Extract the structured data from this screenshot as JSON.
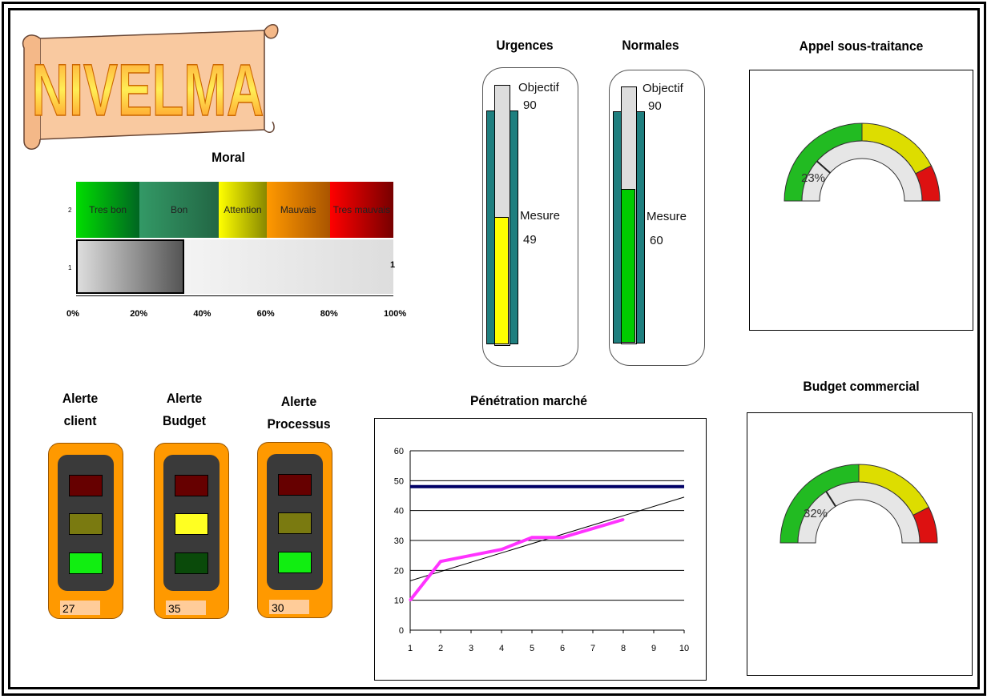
{
  "logo": {
    "text": "NIVELMA",
    "colors": {
      "scroll": "#f9c9a0",
      "letters": "#ff9933"
    }
  },
  "moral": {
    "title": "Moral",
    "row_labels": [
      "2",
      "1"
    ],
    "end_label": "1",
    "bands": [
      {
        "label": "Tres bon",
        "from": 0,
        "to": 20,
        "color_start": "#00dd00",
        "color_end": "#006622"
      },
      {
        "label": "Bon",
        "from": 20,
        "to": 45,
        "color_start": "#339966",
        "color_end": "#226644"
      },
      {
        "label": "Attention",
        "from": 45,
        "to": 60,
        "color_start": "#ffff00",
        "color_end": "#888800"
      },
      {
        "label": "Mauvais",
        "from": 60,
        "to": 80,
        "color_start": "#ff9900",
        "color_end": "#aa5500"
      },
      {
        "label": "Tres mauvais",
        "from": 80,
        "to": 100,
        "color_start": "#ff0000",
        "color_end": "#770000"
      }
    ],
    "value": 34,
    "ticks": [
      "0%",
      "20%",
      "40%",
      "60%",
      "80%",
      "100%"
    ]
  },
  "urgences": {
    "title": "Urgences",
    "objectif_label": "Objectif",
    "objectif": 90,
    "mesure_label": "Mesure",
    "mesure": 49,
    "fill_color": "#ffff00"
  },
  "normales": {
    "title": "Normales",
    "objectif_label": "Objectif",
    "objectif": 90,
    "mesure_label": "Mesure",
    "mesure": 60,
    "fill_color": "#00cc00"
  },
  "appel": {
    "title": "Appel sous-traitance",
    "value_label": "23%",
    "value": 23
  },
  "budget": {
    "title": "Budget commercial",
    "value_label": "32%",
    "value": 32
  },
  "alerts": [
    {
      "title_line1": "Alerte",
      "title_line2": "client",
      "value": "27",
      "active": "green"
    },
    {
      "title_line1": "Alerte",
      "title_line2": "Budget",
      "value": "35",
      "active": "yellow"
    },
    {
      "title_line1": "Alerte",
      "title_line2": "Processus",
      "value": "30",
      "active": "green"
    }
  ],
  "chart_data": {
    "type": "line",
    "title": "Pénétration marché",
    "x": [
      1,
      2,
      3,
      4,
      5,
      6,
      7,
      8
    ],
    "series": [
      {
        "values": [
          10,
          23,
          25,
          27,
          31,
          31,
          34,
          37
        ],
        "color": "#ff33ff"
      }
    ],
    "target_line": 48,
    "trend_line": {
      "x_start": 1,
      "y_start": 16.5,
      "x_end": 10,
      "y_end": 44.5
    },
    "xlim": [
      1,
      10
    ],
    "ylim": [
      0,
      60
    ],
    "xticks": [
      "1",
      "2",
      "3",
      "4",
      "5",
      "6",
      "7",
      "8",
      "9",
      "10"
    ],
    "yticks": [
      "0",
      "10",
      "20",
      "30",
      "40",
      "50",
      "60"
    ],
    "grid": true
  }
}
